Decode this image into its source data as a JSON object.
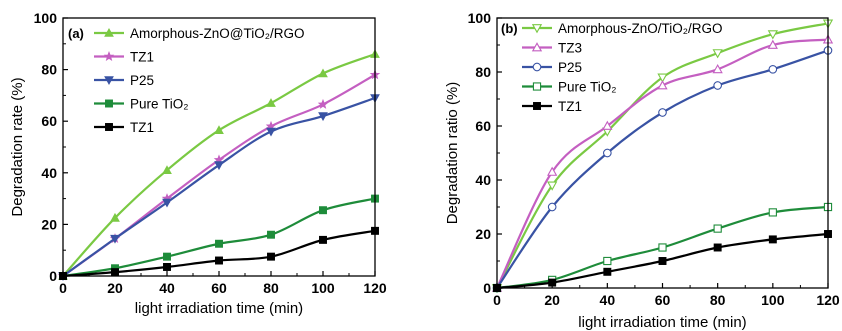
{
  "chart_data": [
    {
      "type": "line",
      "panel_label": "(a)",
      "xlabel": "light irradiation time (min)",
      "ylabel": "Degradation rate (%)",
      "xlim": [
        0,
        120
      ],
      "ylim": [
        0,
        100
      ],
      "xticks": [
        0,
        20,
        40,
        60,
        80,
        100,
        120
      ],
      "yticks": [
        0,
        20,
        40,
        60,
        80,
        100
      ],
      "legend_position": "top-left",
      "x": [
        0,
        20,
        40,
        60,
        80,
        100,
        120
      ],
      "series": [
        {
          "name": "Amorphous-ZnO@TiO₂/RGO",
          "color": "#7ac943",
          "marker": "triangle-up",
          "values": [
            0,
            22.5,
            41,
            56.5,
            67,
            78.5,
            86
          ]
        },
        {
          "name": "TZ1",
          "color": "#c45fc1",
          "marker": "star",
          "values": [
            0,
            14.5,
            30,
            45,
            58,
            66.5,
            78
          ]
        },
        {
          "name": "P25",
          "color": "#3953a4",
          "marker": "triangle-down",
          "values": [
            0,
            14.5,
            28.5,
            43,
            56,
            62,
            69
          ]
        },
        {
          "name": "Pure TiO₂",
          "color": "#1e8c3a",
          "marker": "square",
          "values": [
            0,
            3,
            7.5,
            12.5,
            16,
            25.5,
            30
          ]
        },
        {
          "name": "TZ1",
          "color": "#000000",
          "marker": "square",
          "values": [
            0,
            1.5,
            3.5,
            6,
            7.5,
            14,
            17.5
          ]
        }
      ]
    },
    {
      "type": "line",
      "panel_label": "(b)",
      "xlabel": "light irradiation time (min)",
      "ylabel": "Degradation ratio (%)",
      "xlim": [
        0,
        120
      ],
      "ylim": [
        0,
        100
      ],
      "xticks": [
        0,
        20,
        40,
        60,
        80,
        100,
        120
      ],
      "yticks": [
        0,
        20,
        40,
        60,
        80,
        100
      ],
      "legend_position": "top-left",
      "x": [
        0,
        20,
        40,
        60,
        80,
        100,
        120
      ],
      "series": [
        {
          "name": "Amorphous-ZnO/TiO₂/RGO",
          "color": "#7ac943",
          "marker": "triangle-down-open",
          "values": [
            0,
            38,
            58,
            78,
            87,
            94,
            98
          ]
        },
        {
          "name": "TZ3",
          "color": "#c45fc1",
          "marker": "triangle-up-open",
          "values": [
            0,
            43,
            60,
            75,
            81,
            90,
            92
          ]
        },
        {
          "name": "P25",
          "color": "#3953a4",
          "marker": "circle-open",
          "values": [
            0,
            30,
            50,
            65,
            75,
            81,
            88
          ]
        },
        {
          "name": "Pure TiO₂",
          "color": "#1e8c3a",
          "marker": "square-open",
          "values": [
            0,
            3,
            10,
            15,
            22,
            28,
            30
          ]
        },
        {
          "name": "TZ1",
          "color": "#000000",
          "marker": "square",
          "values": [
            0,
            2,
            6,
            10,
            15,
            18,
            20
          ]
        }
      ]
    }
  ]
}
